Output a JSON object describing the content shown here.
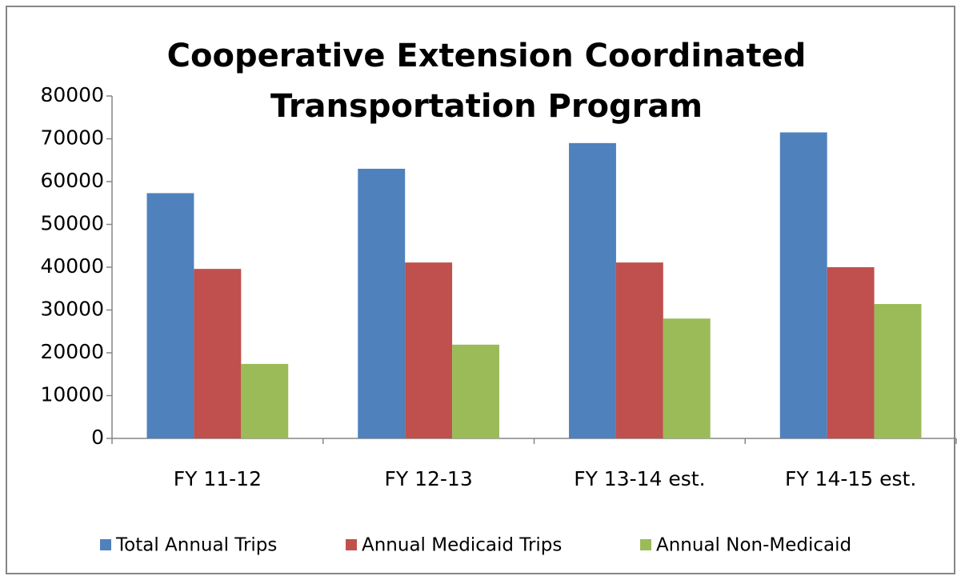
{
  "chart_data": {
    "type": "bar",
    "title": [
      "Cooperative Extension Coordinated",
      "Transportation Program"
    ],
    "categories": [
      "FY 11-12",
      "FY 12-13",
      "FY 13-14 est.",
      "FY 14-15 est."
    ],
    "series": [
      {
        "name": "Total Annual Trips",
        "color": "#4f81bd",
        "values": [
          57300,
          63000,
          69000,
          71500
        ]
      },
      {
        "name": "Annual Medicaid Trips",
        "color": "#c0504d",
        "values": [
          39600,
          41100,
          41100,
          40000
        ]
      },
      {
        "name": "Annual Non-Medicaid",
        "color": "#9bbb59",
        "values": [
          17400,
          21900,
          28000,
          31400
        ]
      }
    ],
    "ylim": [
      0,
      80000
    ],
    "yticks": [
      0,
      10000,
      20000,
      30000,
      40000,
      50000,
      60000,
      70000,
      80000
    ],
    "legend": "bottom"
  }
}
